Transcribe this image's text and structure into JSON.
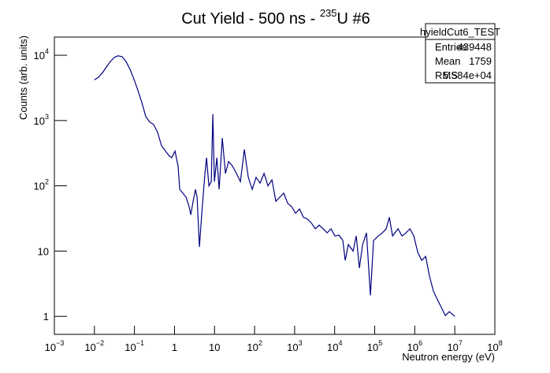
{
  "chart_data": {
    "type": "line",
    "title": {
      "text": "Cut Yield - 500 ns - ",
      "sup": "235",
      "rest": "U  #6"
    },
    "xlabel": "Neutron energy (eV)",
    "ylabel": "Counts (arb. units)",
    "xlog": true,
    "ylog": true,
    "xlim": [
      0.001,
      100000000
    ],
    "ylim": [
      0.53,
      19000
    ],
    "xticks": [
      {
        "value": 0.001,
        "label": "10",
        "sup": "−3"
      },
      {
        "value": 0.01,
        "label": "10",
        "sup": "−2"
      },
      {
        "value": 0.1,
        "label": "10",
        "sup": "−1"
      },
      {
        "value": 1,
        "label": "1"
      },
      {
        "value": 10,
        "label": "10"
      },
      {
        "value": 100,
        "label": "10",
        "sup": "2"
      },
      {
        "value": 1000,
        "label": "10",
        "sup": "3"
      },
      {
        "value": 10000,
        "label": "10",
        "sup": "4"
      },
      {
        "value": 100000,
        "label": "10",
        "sup": "5"
      },
      {
        "value": 1000000,
        "label": "10",
        "sup": "6"
      },
      {
        "value": 10000000,
        "label": "10",
        "sup": "7"
      },
      {
        "value": 100000000,
        "label": "10",
        "sup": "8"
      }
    ],
    "yticks": [
      1,
      10,
      {
        "value": 100,
        "label": "10",
        "sup": "2"
      },
      {
        "value": 1000,
        "label": "10",
        "sup": "3"
      },
      {
        "value": 10000,
        "label": "10",
        "sup": "4"
      }
    ],
    "series": [
      {
        "name": "hyieldCut6_TEST",
        "color": "#000080",
        "x": [
          0.01,
          0.01265,
          0.0159,
          0.0199,
          0.025,
          0.0313,
          0.0393,
          0.0493,
          0.0618,
          0.0776,
          0.0973,
          0.122,
          0.153,
          0.192,
          0.241,
          0.302,
          0.379,
          0.475,
          0.597,
          0.748,
          0.857,
          1.03,
          1.23,
          1.35,
          1.62,
          1.94,
          2.32,
          2.55,
          2.92,
          3.34,
          3.66,
          4.19,
          4.8,
          5.75,
          6.3,
          7.21,
          8.26,
          9.06,
          9.91,
          11.4,
          13,
          15.6,
          18.7,
          22.4,
          28.1,
          35.3,
          44.2,
          55.5,
          69.6,
          87.3,
          109,
          137,
          172,
          216,
          271,
          340,
          427,
          535,
          671,
          842,
          1056,
          1325,
          1662,
          2084,
          2614,
          3280,
          4110,
          5160,
          6470,
          8110,
          10180,
          12770,
          16020,
          18360,
          22020,
          28900,
          34600,
          41500,
          49800,
          62400,
          78300,
          93800,
          123000,
          155000,
          194000,
          232000,
          279000,
          383000,
          480000,
          603000,
          755000,
          947000,
          1190000,
          1490000,
          1870000,
          2340000,
          2940000,
          3690000,
          4630000,
          5800000,
          7280000,
          10000000
        ],
        "values": [
          4200,
          4600,
          5400,
          6600,
          8000,
          9300,
          9800,
          9500,
          8000,
          6100,
          4300,
          2900,
          1900,
          1150,
          950,
          870,
          660,
          410,
          340,
          285,
          270,
          340,
          200,
          88,
          77,
          67,
          48,
          36,
          58,
          88,
          67,
          11.6,
          38,
          155,
          270,
          100,
          116,
          1250,
          116,
          270,
          88,
          540,
          155,
          235,
          200,
          155,
          116,
          360,
          135,
          88,
          135,
          110,
          155,
          100,
          123,
          58,
          67,
          77,
          54,
          48,
          38,
          44,
          33,
          31,
          27,
          22,
          25,
          22,
          19,
          22,
          17,
          17.6,
          14.5,
          7.2,
          12.6,
          10,
          17,
          5.5,
          12.6,
          19,
          2.1,
          14.5,
          17,
          19,
          22,
          33,
          17,
          22,
          17,
          19,
          22,
          17,
          9.5,
          7.2,
          8.3,
          4.1,
          2.4,
          1.8,
          1.36,
          1.03,
          1.18,
          1
        ]
      }
    ],
    "stats": {
      "name": "hyieldCut6_TEST",
      "rows": [
        [
          "Entries",
          "439448"
        ],
        [
          "Mean",
          "1759"
        ],
        [
          "RMS",
          "5.584e+04"
        ]
      ]
    }
  }
}
